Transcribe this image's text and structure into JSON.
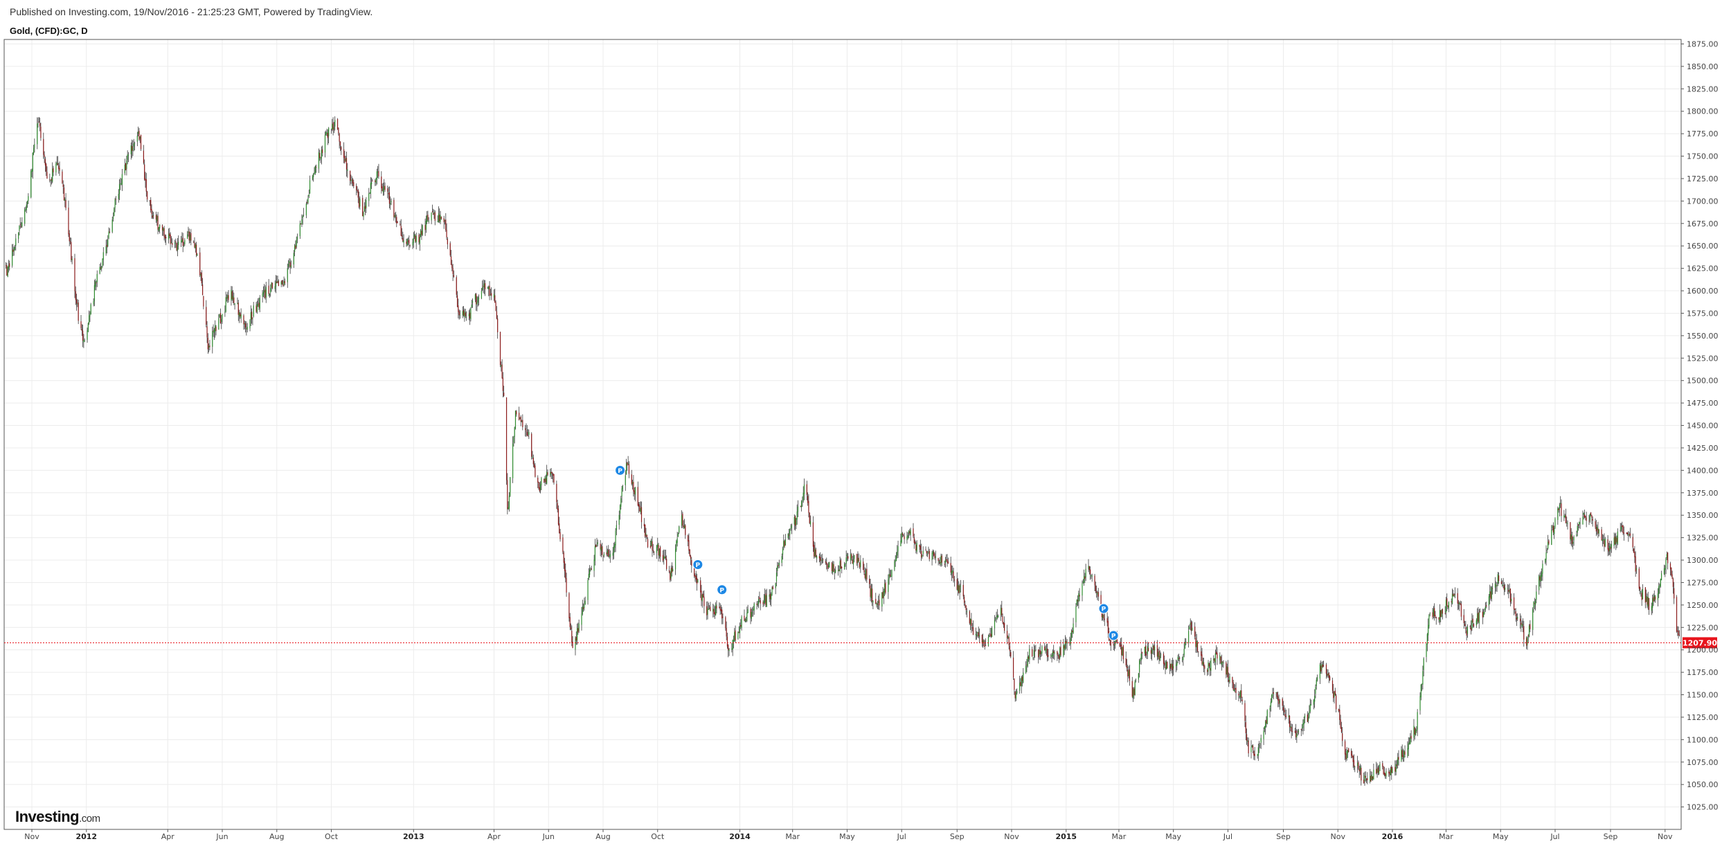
{
  "header": {
    "published": "Published on Investing.com, 19/Nov/2016 - 21:25:23 GMT, Powered by TradingView.",
    "symbol": "Gold, (CFD):GC, D"
  },
  "brand": {
    "main": "Investing",
    "suffix": ".com"
  },
  "colors": {
    "up": "#2e8b2e",
    "down": "#8b1a1a",
    "grid": "#ececec",
    "last_price_line": "#e8141c",
    "marker": "#1e88e5"
  },
  "chart_data": {
    "type": "candlestick",
    "title": "",
    "xlabel": "",
    "ylabel": "",
    "ylim": [
      1000,
      1880
    ],
    "x_range": [
      "2011-10-01",
      "2016-11-19"
    ],
    "grid": true,
    "y_ticks": [
      "1025.00",
      "1050.00",
      "1075.00",
      "1100.00",
      "1125.00",
      "1150.00",
      "1175.00",
      "1200.00",
      "1225.00",
      "1250.00",
      "1275.00",
      "1300.00",
      "1325.00",
      "1350.00",
      "1375.00",
      "1400.00",
      "1425.00",
      "1450.00",
      "1475.00",
      "1500.00",
      "1525.00",
      "1550.00",
      "1575.00",
      "1600.00",
      "1625.00",
      "1650.00",
      "1675.00",
      "1700.00",
      "1725.00",
      "1750.00",
      "1775.00",
      "1800.00",
      "1825.00",
      "1850.00",
      "1875.00"
    ],
    "x_ticks": [
      {
        "date": "2011-11-01",
        "label": "Nov",
        "bold": false
      },
      {
        "date": "2012-01-01",
        "label": "2012",
        "bold": true
      },
      {
        "date": "2012-04-01",
        "label": "Apr",
        "bold": false
      },
      {
        "date": "2012-06-01",
        "label": "Jun",
        "bold": false
      },
      {
        "date": "2012-08-01",
        "label": "Aug",
        "bold": false
      },
      {
        "date": "2012-10-01",
        "label": "Oct",
        "bold": false
      },
      {
        "date": "2013-01-01",
        "label": "2013",
        "bold": true
      },
      {
        "date": "2013-04-01",
        "label": "Apr",
        "bold": false
      },
      {
        "date": "2013-06-01",
        "label": "Jun",
        "bold": false
      },
      {
        "date": "2013-08-01",
        "label": "Aug",
        "bold": false
      },
      {
        "date": "2013-10-01",
        "label": "Oct",
        "bold": false
      },
      {
        "date": "2014-01-01",
        "label": "2014",
        "bold": true
      },
      {
        "date": "2014-03-01",
        "label": "Mar",
        "bold": false
      },
      {
        "date": "2014-05-01",
        "label": "May",
        "bold": false
      },
      {
        "date": "2014-07-01",
        "label": "Jul",
        "bold": false
      },
      {
        "date": "2014-09-01",
        "label": "Sep",
        "bold": false
      },
      {
        "date": "2014-11-01",
        "label": "Nov",
        "bold": false
      },
      {
        "date": "2015-01-01",
        "label": "2015",
        "bold": true
      },
      {
        "date": "2015-03-01",
        "label": "Mar",
        "bold": false
      },
      {
        "date": "2015-05-01",
        "label": "May",
        "bold": false
      },
      {
        "date": "2015-07-01",
        "label": "Jul",
        "bold": false
      },
      {
        "date": "2015-09-01",
        "label": "Sep",
        "bold": false
      },
      {
        "date": "2015-11-01",
        "label": "Nov",
        "bold": false
      },
      {
        "date": "2016-01-01",
        "label": "2016",
        "bold": true
      },
      {
        "date": "2016-03-01",
        "label": "Mar",
        "bold": false
      },
      {
        "date": "2016-05-01",
        "label": "May",
        "bold": false
      },
      {
        "date": "2016-07-01",
        "label": "Jul",
        "bold": false
      },
      {
        "date": "2016-09-01",
        "label": "Sep",
        "bold": false
      },
      {
        "date": "2016-11-01",
        "label": "Nov",
        "bold": false
      }
    ],
    "series": [
      {
        "close_path": [
          {
            "date": "2011-09-26",
            "close": 1640
          },
          {
            "date": "2011-10-05",
            "close": 1620
          },
          {
            "date": "2011-10-15",
            "close": 1660
          },
          {
            "date": "2011-10-25",
            "close": 1690
          },
          {
            "date": "2011-11-08",
            "close": 1790
          },
          {
            "date": "2011-11-20",
            "close": 1720
          },
          {
            "date": "2011-11-30",
            "close": 1745
          },
          {
            "date": "2011-12-10",
            "close": 1690
          },
          {
            "date": "2011-12-20",
            "close": 1590
          },
          {
            "date": "2011-12-29",
            "close": 1540
          },
          {
            "date": "2012-01-10",
            "close": 1600
          },
          {
            "date": "2012-01-25",
            "close": 1660
          },
          {
            "date": "2012-02-10",
            "close": 1730
          },
          {
            "date": "2012-02-28",
            "close": 1780
          },
          {
            "date": "2012-03-10",
            "close": 1700
          },
          {
            "date": "2012-03-25",
            "close": 1665
          },
          {
            "date": "2012-04-10",
            "close": 1650
          },
          {
            "date": "2012-04-25",
            "close": 1660
          },
          {
            "date": "2012-05-05",
            "close": 1640
          },
          {
            "date": "2012-05-16",
            "close": 1540
          },
          {
            "date": "2012-05-30",
            "close": 1570
          },
          {
            "date": "2012-06-10",
            "close": 1600
          },
          {
            "date": "2012-06-28",
            "close": 1560
          },
          {
            "date": "2012-07-10",
            "close": 1585
          },
          {
            "date": "2012-07-25",
            "close": 1605
          },
          {
            "date": "2012-08-10",
            "close": 1610
          },
          {
            "date": "2012-08-25",
            "close": 1660
          },
          {
            "date": "2012-09-10",
            "close": 1730
          },
          {
            "date": "2012-09-25",
            "close": 1770
          },
          {
            "date": "2012-10-05",
            "close": 1785
          },
          {
            "date": "2012-10-20",
            "close": 1730
          },
          {
            "date": "2012-11-05",
            "close": 1690
          },
          {
            "date": "2012-11-20",
            "close": 1730
          },
          {
            "date": "2012-12-05",
            "close": 1700
          },
          {
            "date": "2012-12-20",
            "close": 1660
          },
          {
            "date": "2013-01-05",
            "close": 1655
          },
          {
            "date": "2013-01-20",
            "close": 1685
          },
          {
            "date": "2013-02-05",
            "close": 1675
          },
          {
            "date": "2013-02-20",
            "close": 1580
          },
          {
            "date": "2013-03-05",
            "close": 1575
          },
          {
            "date": "2013-03-20",
            "close": 1610
          },
          {
            "date": "2013-04-02",
            "close": 1590
          },
          {
            "date": "2013-04-12",
            "close": 1480
          },
          {
            "date": "2013-04-16",
            "close": 1350
          },
          {
            "date": "2013-04-25",
            "close": 1460
          },
          {
            "date": "2013-05-10",
            "close": 1440
          },
          {
            "date": "2013-05-20",
            "close": 1380
          },
          {
            "date": "2013-06-05",
            "close": 1400
          },
          {
            "date": "2013-06-20",
            "close": 1280
          },
          {
            "date": "2013-06-28",
            "close": 1200
          },
          {
            "date": "2013-07-10",
            "close": 1250
          },
          {
            "date": "2013-07-25",
            "close": 1320
          },
          {
            "date": "2013-08-10",
            "close": 1300
          },
          {
            "date": "2013-08-28",
            "close": 1410
          },
          {
            "date": "2013-09-10",
            "close": 1360
          },
          {
            "date": "2013-09-20",
            "close": 1320
          },
          {
            "date": "2013-10-05",
            "close": 1310
          },
          {
            "date": "2013-10-15",
            "close": 1280
          },
          {
            "date": "2013-10-28",
            "close": 1350
          },
          {
            "date": "2013-11-10",
            "close": 1290
          },
          {
            "date": "2013-11-25",
            "close": 1240
          },
          {
            "date": "2013-12-10",
            "close": 1250
          },
          {
            "date": "2013-12-20",
            "close": 1200
          },
          {
            "date": "2014-01-05",
            "close": 1235
          },
          {
            "date": "2014-01-20",
            "close": 1250
          },
          {
            "date": "2014-02-05",
            "close": 1260
          },
          {
            "date": "2014-02-20",
            "close": 1320
          },
          {
            "date": "2014-03-05",
            "close": 1345
          },
          {
            "date": "2014-03-15",
            "close": 1385
          },
          {
            "date": "2014-03-25",
            "close": 1310
          },
          {
            "date": "2014-04-05",
            "close": 1300
          },
          {
            "date": "2014-04-20",
            "close": 1290
          },
          {
            "date": "2014-05-05",
            "close": 1305
          },
          {
            "date": "2014-05-20",
            "close": 1290
          },
          {
            "date": "2014-06-02",
            "close": 1245
          },
          {
            "date": "2014-06-15",
            "close": 1275
          },
          {
            "date": "2014-06-28",
            "close": 1320
          },
          {
            "date": "2014-07-10",
            "close": 1335
          },
          {
            "date": "2014-07-20",
            "close": 1310
          },
          {
            "date": "2014-08-05",
            "close": 1305
          },
          {
            "date": "2014-08-20",
            "close": 1295
          },
          {
            "date": "2014-09-05",
            "close": 1265
          },
          {
            "date": "2014-09-20",
            "close": 1220
          },
          {
            "date": "2014-10-05",
            "close": 1205
          },
          {
            "date": "2014-10-20",
            "close": 1245
          },
          {
            "date": "2014-10-30",
            "close": 1200
          },
          {
            "date": "2014-11-06",
            "close": 1145
          },
          {
            "date": "2014-11-20",
            "close": 1195
          },
          {
            "date": "2014-12-05",
            "close": 1200
          },
          {
            "date": "2014-12-20",
            "close": 1190
          },
          {
            "date": "2015-01-05",
            "close": 1210
          },
          {
            "date": "2015-01-15",
            "close": 1260
          },
          {
            "date": "2015-01-25",
            "close": 1295
          },
          {
            "date": "2015-02-05",
            "close": 1260
          },
          {
            "date": "2015-02-20",
            "close": 1210
          },
          {
            "date": "2015-03-05",
            "close": 1200
          },
          {
            "date": "2015-03-17",
            "close": 1150
          },
          {
            "date": "2015-03-28",
            "close": 1200
          },
          {
            "date": "2015-04-10",
            "close": 1200
          },
          {
            "date": "2015-04-25",
            "close": 1180
          },
          {
            "date": "2015-05-10",
            "close": 1190
          },
          {
            "date": "2015-05-20",
            "close": 1225
          },
          {
            "date": "2015-06-05",
            "close": 1175
          },
          {
            "date": "2015-06-20",
            "close": 1195
          },
          {
            "date": "2015-07-05",
            "close": 1165
          },
          {
            "date": "2015-07-15",
            "close": 1150
          },
          {
            "date": "2015-07-25",
            "close": 1085
          },
          {
            "date": "2015-08-05",
            "close": 1090
          },
          {
            "date": "2015-08-20",
            "close": 1155
          },
          {
            "date": "2015-09-05",
            "close": 1125
          },
          {
            "date": "2015-09-15",
            "close": 1105
          },
          {
            "date": "2015-09-30",
            "close": 1130
          },
          {
            "date": "2015-10-14",
            "close": 1185
          },
          {
            "date": "2015-10-28",
            "close": 1150
          },
          {
            "date": "2015-11-10",
            "close": 1085
          },
          {
            "date": "2015-11-25",
            "close": 1065
          },
          {
            "date": "2015-12-03",
            "close": 1050
          },
          {
            "date": "2015-12-15",
            "close": 1070
          },
          {
            "date": "2015-12-31",
            "close": 1062
          },
          {
            "date": "2016-01-15",
            "close": 1090
          },
          {
            "date": "2016-01-28",
            "close": 1115
          },
          {
            "date": "2016-02-11",
            "close": 1240
          },
          {
            "date": "2016-02-25",
            "close": 1240
          },
          {
            "date": "2016-03-10",
            "close": 1265
          },
          {
            "date": "2016-03-25",
            "close": 1220
          },
          {
            "date": "2016-04-10",
            "close": 1240
          },
          {
            "date": "2016-04-28",
            "close": 1280
          },
          {
            "date": "2016-05-10",
            "close": 1265
          },
          {
            "date": "2016-05-30",
            "close": 1210
          },
          {
            "date": "2016-06-10",
            "close": 1265
          },
          {
            "date": "2016-06-24",
            "close": 1320
          },
          {
            "date": "2016-07-06",
            "close": 1360
          },
          {
            "date": "2016-07-20",
            "close": 1320
          },
          {
            "date": "2016-08-02",
            "close": 1350
          },
          {
            "date": "2016-08-15",
            "close": 1340
          },
          {
            "date": "2016-08-30",
            "close": 1310
          },
          {
            "date": "2016-09-10",
            "close": 1330
          },
          {
            "date": "2016-09-22",
            "close": 1335
          },
          {
            "date": "2016-10-04",
            "close": 1265
          },
          {
            "date": "2016-10-15",
            "close": 1250
          },
          {
            "date": "2016-10-25",
            "close": 1270
          },
          {
            "date": "2016-11-03",
            "close": 1300
          },
          {
            "date": "2016-11-09",
            "close": 1275
          },
          {
            "date": "2016-11-14",
            "close": 1222
          },
          {
            "date": "2016-11-18",
            "close": 1208
          }
        ]
      }
    ],
    "last_price": {
      "value": 1207.9,
      "label": "1207.90"
    },
    "markers": [
      {
        "date": "2013-08-20",
        "value": 1400,
        "label": "P"
      },
      {
        "date": "2013-11-15",
        "value": 1295,
        "label": "P"
      },
      {
        "date": "2013-12-12",
        "value": 1267,
        "label": "P"
      },
      {
        "date": "2015-02-12",
        "value": 1246,
        "label": "P"
      },
      {
        "date": "2015-02-23",
        "value": 1216,
        "label": "P"
      }
    ]
  }
}
